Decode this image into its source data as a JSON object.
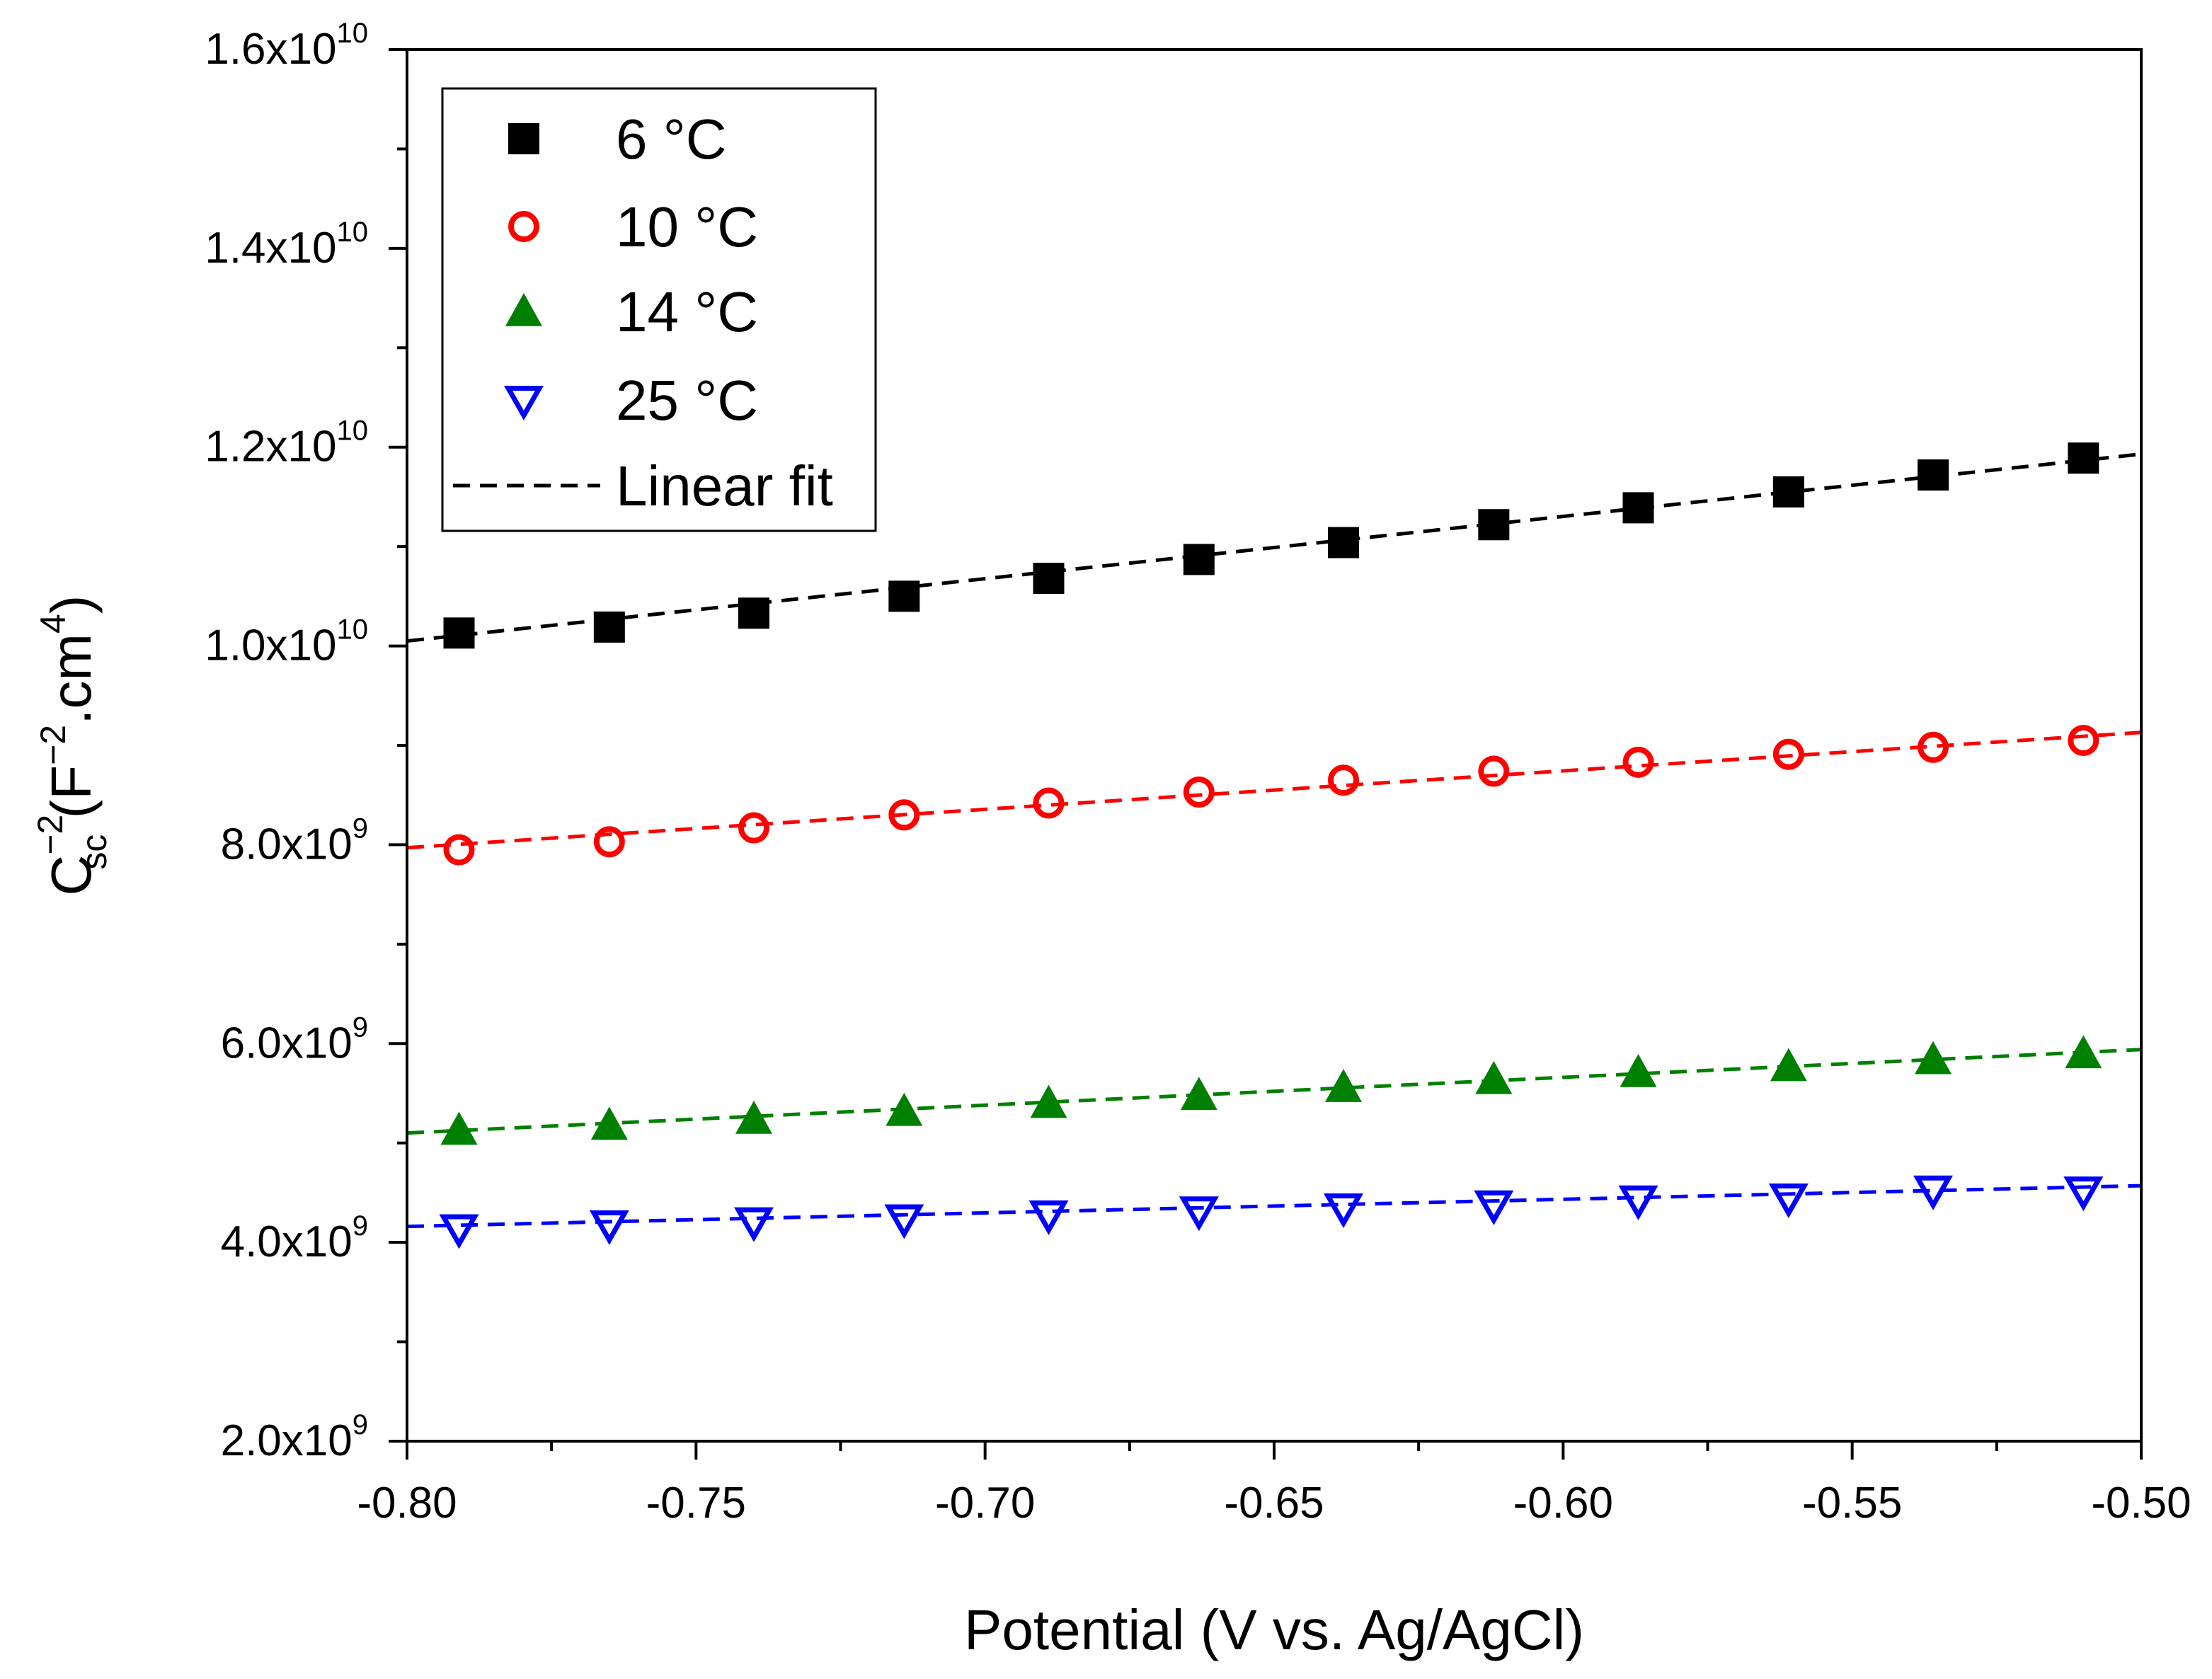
{
  "chart_data": {
    "type": "scatter",
    "xlabel": "Potential (V vs. Ag/AgCl)",
    "ylabel": {
      "base": "C",
      "sup": "−2",
      "sub": "sc",
      "unit_open": " (F",
      "unit_sup1": "−2",
      "unit_mid": ".cm",
      "unit_sup2": "4",
      "unit_close": ")"
    },
    "xlim": [
      -0.8,
      -0.5
    ],
    "ylim": [
      2000000000.0,
      16000000000.0
    ],
    "x_ticks": [
      {
        "value": -0.8,
        "label": "-0.80"
      },
      {
        "value": -0.75,
        "label": "-0.75"
      },
      {
        "value": -0.7,
        "label": "-0.70"
      },
      {
        "value": -0.65,
        "label": "-0.65"
      },
      {
        "value": -0.6,
        "label": "-0.60"
      },
      {
        "value": -0.55,
        "label": "-0.55"
      },
      {
        "value": -0.5,
        "label": "-0.50"
      }
    ],
    "y_ticks": [
      {
        "value": 2000000000.0,
        "mant": "2.0x10",
        "exp": "9"
      },
      {
        "value": 4000000000.0,
        "mant": "4.0x10",
        "exp": "9"
      },
      {
        "value": 6000000000.0,
        "mant": "6.0x10",
        "exp": "9"
      },
      {
        "value": 8000000000.0,
        "mant": "8.0x10",
        "exp": "9"
      },
      {
        "value": 10000000000.0,
        "mant": "1.0x10",
        "exp": "10"
      },
      {
        "value": 12000000000.0,
        "mant": "1.2x10",
        "exp": "10"
      },
      {
        "value": 14000000000.0,
        "mant": "1.4x10",
        "exp": "10"
      },
      {
        "value": 16000000000.0,
        "mant": "1.6x10",
        "exp": "10"
      }
    ],
    "x_minor_step": 0.025,
    "y_minor_step": 1000000000.0,
    "grid": false,
    "legend_position": "top-left",
    "x": [
      -0.791,
      -0.765,
      -0.74,
      -0.714,
      -0.689,
      -0.663,
      -0.638,
      -0.612,
      -0.587,
      -0.561,
      -0.536,
      -0.51
    ],
    "series": [
      {
        "name": "6 °C",
        "marker": "filled-square",
        "color": "#000000",
        "values": [
          10130000000.0,
          10190000000.0,
          10330000000.0,
          10500000000.0,
          10680000000.0,
          10870000000.0,
          11040000000.0,
          11220000000.0,
          11390000000.0,
          11550000000.0,
          11720000000.0,
          11890000000.0
        ],
        "fit": [
          10050000000.0,
          11930000000.0
        ]
      },
      {
        "name": "10 °C",
        "marker": "open-circle",
        "color": "#ff0000",
        "values": [
          7950000000.0,
          8030000000.0,
          8170000000.0,
          8300000000.0,
          8420000000.0,
          8530000000.0,
          8650000000.0,
          8740000000.0,
          8830000000.0,
          8910000000.0,
          8980000000.0,
          9050000000.0
        ],
        "fit": [
          7970000000.0,
          9130000000.0
        ]
      },
      {
        "name": "14 °C",
        "marker": "filled-triangle-up",
        "color": "#008000",
        "values": [
          5130000000.0,
          5180000000.0,
          5240000000.0,
          5320000000.0,
          5400000000.0,
          5480000000.0,
          5560000000.0,
          5640000000.0,
          5710000000.0,
          5770000000.0,
          5840000000.0,
          5900000000.0
        ],
        "fit": [
          5100000000.0,
          5940000000.0
        ]
      },
      {
        "name": "25 °C",
        "marker": "open-triangle-down",
        "color": "#0000ff",
        "values": [
          4140000000.0,
          4180000000.0,
          4210000000.0,
          4240000000.0,
          4280000000.0,
          4320000000.0,
          4350000000.0,
          4380000000.0,
          4430000000.0,
          4450000000.0,
          4530000000.0,
          4520000000.0
        ],
        "fit": [
          4160000000.0,
          4570000000.0
        ]
      }
    ],
    "fit_label": "Linear fit"
  }
}
